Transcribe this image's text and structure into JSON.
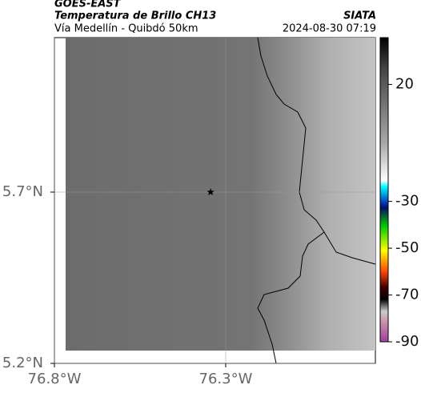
{
  "header": {
    "title": "GOES-EAST",
    "subtitle": "Temperatura de Brillo CH13",
    "source": "SIATA",
    "route": "Vía Medellín - Quibdó 50km",
    "timestamp": "2024-08-30 07:19"
  },
  "map": {
    "xlim": [
      -76.8,
      -75.863
    ],
    "ylim": [
      5.2,
      6.151
    ],
    "xticks": [
      {
        "value": -76.8,
        "label": "76.8°W"
      },
      {
        "value": -76.3,
        "label": "76.3°W"
      }
    ],
    "yticks": [
      {
        "value": 5.2,
        "label": "5.2°N"
      },
      {
        "value": 5.7,
        "label": "5.7°N"
      }
    ],
    "marker": {
      "lon": -76.344,
      "lat": 5.7
    }
  },
  "colorbar": {
    "lim": [
      -90,
      40
    ],
    "ticks": [
      20,
      -30,
      -50,
      -70,
      -90
    ]
  }
}
